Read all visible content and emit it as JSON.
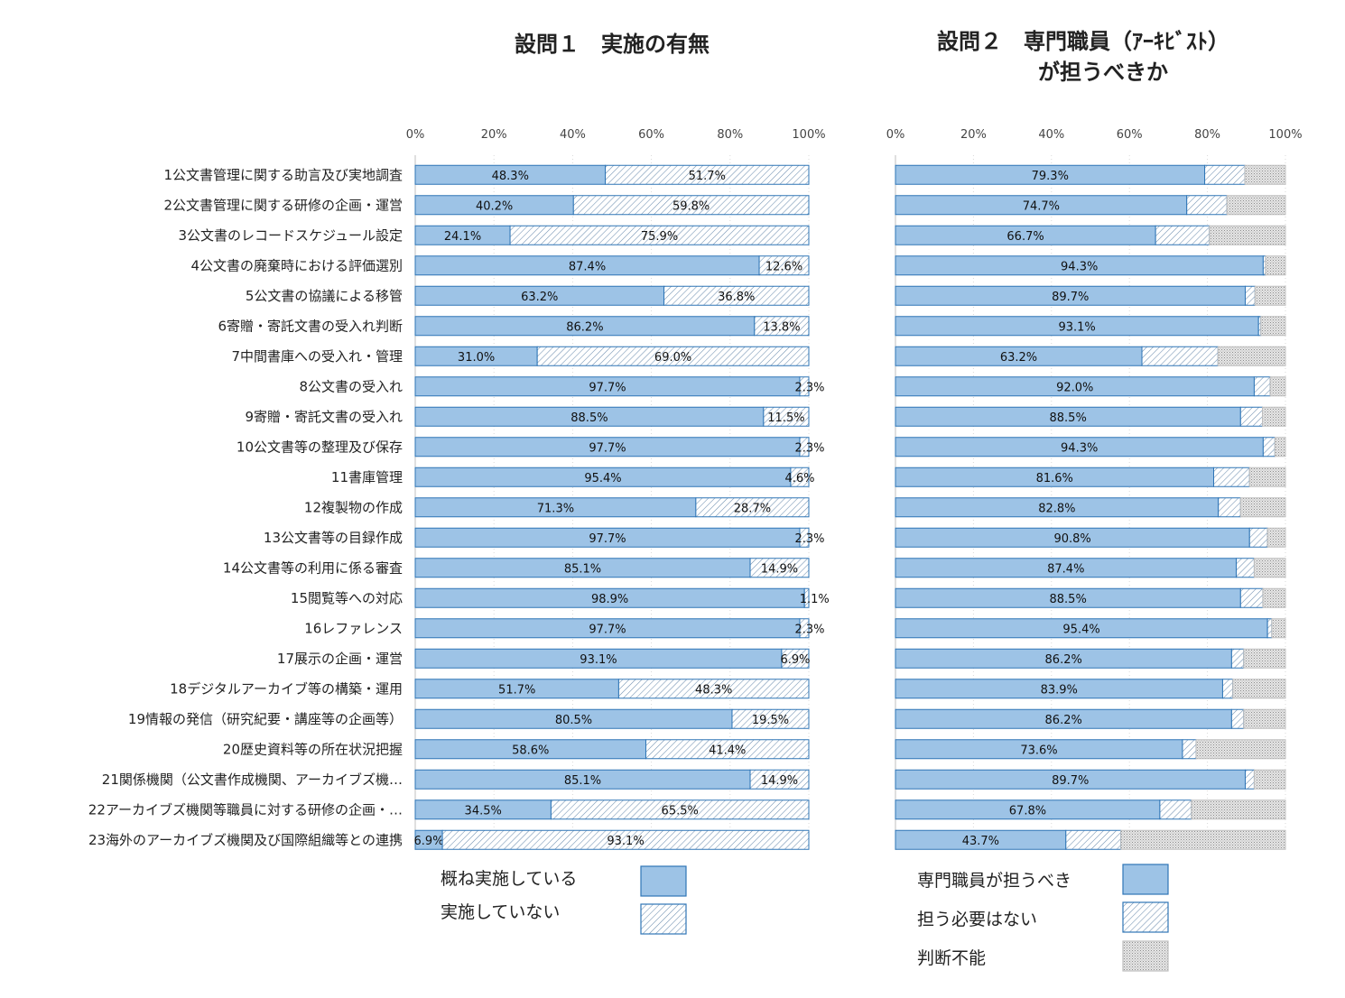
{
  "chart_data": [
    {
      "type": "bar",
      "orientation": "horizontal",
      "stacked": true,
      "percent": true,
      "title": "設問１　実施の有無",
      "categories": [
        "1公文書管理に関する助言及び実地調査",
        "2公文書管理に関する研修の企画・運営",
        "3公文書のレコードスケジュール設定",
        "4公文書の廃棄時における評価選別",
        "5公文書の協議による移管",
        "6寄贈・寄託文書の受入れ判断",
        "7中間書庫への受入れ・管理",
        "8公文書の受入れ",
        "9寄贈・寄託文書の受入れ",
        "10公文書等の整理及び保存",
        "11書庫管理",
        "12複製物の作成",
        "13公文書等の目録作成",
        "14公文書等の利用に係る審査",
        "15閲覧等への対応",
        "16レファレンス",
        "17展示の企画・運営",
        "18デジタルアーカイブ等の構築・運用",
        "19情報の発信（研究紀要・講座等の企画等）",
        "20歴史資料等の所在状況把握",
        "21関係機関（公文書作成機関、アーカイブズ機…",
        "22アーカイブズ機関等職員に対する研修の企画・…",
        "23海外のアーカイブズ機関及び国際組織等との連携"
      ],
      "ticks": [
        "0%",
        "20%",
        "40%",
        "60%",
        "80%",
        "100%"
      ],
      "xlim": [
        0,
        100
      ],
      "series": [
        {
          "name": "概ね実施している",
          "pattern": "solid",
          "color": "#9dc3e6",
          "values": [
            48.3,
            40.2,
            24.1,
            87.4,
            63.2,
            86.2,
            31.0,
            97.7,
            88.5,
            97.7,
            95.4,
            71.3,
            97.7,
            85.1,
            98.9,
            97.7,
            93.1,
            51.7,
            80.5,
            58.6,
            85.1,
            34.5,
            6.9
          ],
          "labels": [
            "48.3%",
            "40.2%",
            "24.1%",
            "87.4%",
            "63.2%",
            "86.2%",
            "31.0%",
            "97.7%",
            "88.5%",
            "97.7%",
            "95.4%",
            "71.3%",
            "97.7%",
            "85.1%",
            "98.9%",
            "97.7%",
            "93.1%",
            "51.7%",
            "80.5%",
            "58.6%",
            "85.1%",
            "34.5%",
            "6.9%"
          ]
        },
        {
          "name": "実施していない",
          "pattern": "hatch",
          "color": "#2e75b6",
          "values": [
            51.7,
            59.8,
            75.9,
            12.6,
            36.8,
            13.8,
            69.0,
            2.3,
            11.5,
            2.3,
            4.6,
            28.7,
            2.3,
            14.9,
            1.1,
            2.3,
            6.9,
            48.3,
            19.5,
            41.4,
            14.9,
            65.5,
            93.1
          ],
          "labels": [
            "51.7%",
            "59.8%",
            "75.9%",
            "12.6%",
            "36.8%",
            "13.8%",
            "69.0%",
            "2.3%",
            "11.5%",
            "2.3%",
            "4.6%",
            "28.7%",
            "2.3%",
            "14.9%",
            "1.1%",
            "2.3%",
            "6.9%",
            "48.3%",
            "19.5%",
            "41.4%",
            "14.9%",
            "65.5%",
            "93.1%"
          ]
        }
      ],
      "legend": "bottom"
    },
    {
      "type": "bar",
      "orientation": "horizontal",
      "stacked": true,
      "percent": true,
      "title": [
        "設問２　専門職員（ｱｰｷﾋﾞｽﾄ）",
        "が担うべきか"
      ],
      "ticks": [
        "0%",
        "20%",
        "40%",
        "60%",
        "80%",
        "100%"
      ],
      "xlim": [
        0,
        100
      ],
      "series": [
        {
          "name": "専門職員が担うべき",
          "pattern": "solid",
          "color": "#9dc3e6",
          "values": [
            79.3,
            74.7,
            66.7,
            94.3,
            89.7,
            93.1,
            63.2,
            92.0,
            88.5,
            94.3,
            81.6,
            82.8,
            90.8,
            87.4,
            88.5,
            95.4,
            86.2,
            83.9,
            86.2,
            73.6,
            89.7,
            67.8,
            43.7
          ],
          "labels": [
            "79.3%",
            "74.7%",
            "66.7%",
            "94.3%",
            "89.7%",
            "93.1%",
            "63.2%",
            "92.0%",
            "88.5%",
            "94.3%",
            "81.6%",
            "82.8%",
            "90.8%",
            "87.4%",
            "88.5%",
            "95.4%",
            "86.2%",
            "83.9%",
            "86.2%",
            "73.6%",
            "89.7%",
            "67.8%",
            "43.7%"
          ]
        },
        {
          "name": "担う必要はない",
          "pattern": "hatch",
          "color": "#2e75b6",
          "values": [
            10.3,
            10.3,
            13.8,
            0.6,
            2.5,
            0.6,
            19.5,
            4.1,
            5.6,
            3.0,
            9.2,
            5.7,
            4.6,
            4.6,
            5.7,
            1.1,
            3.1,
            2.6,
            3.1,
            3.5,
            2.3,
            8.1,
            14.1
          ]
        },
        {
          "name": "判断不能",
          "pattern": "dots",
          "color": "#bfbfbf",
          "values": [
            10.4,
            15.0,
            19.5,
            5.1,
            7.8,
            6.3,
            17.3,
            3.9,
            5.9,
            2.7,
            9.2,
            11.5,
            4.6,
            8.0,
            5.8,
            3.5,
            10.7,
            13.5,
            10.7,
            22.9,
            8.0,
            24.1,
            42.2
          ]
        }
      ],
      "legend": "bottom"
    }
  ]
}
